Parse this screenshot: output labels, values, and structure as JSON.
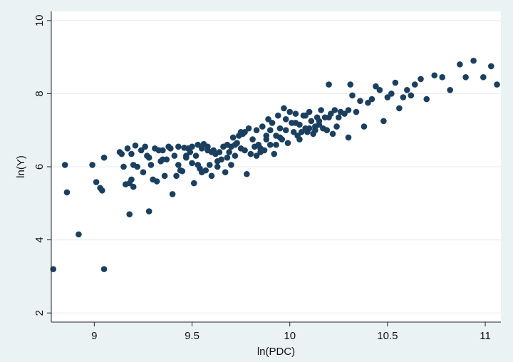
{
  "chart_data": {
    "type": "scatter",
    "xlabel": "ln(PDC)",
    "ylabel": "ln(Y)",
    "xlim": [
      8.78,
      11.08
    ],
    "ylim": [
      1.75,
      10.25
    ],
    "xticks": [
      9,
      9.5,
      10,
      10.5,
      11
    ],
    "yticks": [
      2,
      4,
      6,
      8,
      10
    ],
    "x_tick_labels": [
      "9",
      "9.5",
      "10",
      "10.5",
      "11"
    ],
    "y_tick_labels": [
      "2",
      "4",
      "6",
      "8",
      "10"
    ],
    "grid": true,
    "legend": "none",
    "colors": {
      "outer_background": "#eaf2f3",
      "plot_background": "#ffffff",
      "marker": "#1b3f5e",
      "grid": "#e9eef0",
      "axis": "#222222"
    },
    "series": [
      {
        "x": [
          8.79,
          8.85,
          8.86,
          8.92,
          8.99,
          9.01,
          9.03,
          9.04,
          9.05,
          9.05,
          9.13,
          9.14,
          9.15,
          9.16,
          9.17,
          9.18,
          9.18,
          9.19,
          9.19,
          9.2,
          9.2,
          9.21,
          9.22,
          9.24,
          9.25,
          9.26,
          9.27,
          9.28,
          9.29,
          9.3,
          9.31,
          9.32,
          9.33,
          9.34,
          9.35,
          9.36,
          9.37,
          9.38,
          9.39,
          9.4,
          9.41,
          9.42,
          9.43,
          9.44,
          9.45,
          9.46,
          9.47,
          9.48,
          9.49,
          9.5,
          9.51,
          9.52,
          9.53,
          9.54,
          9.55,
          9.56,
          9.57,
          9.58,
          9.59,
          9.6,
          9.61,
          9.62,
          9.63,
          9.64,
          9.65,
          9.66,
          9.67,
          9.68,
          9.69,
          9.7,
          9.71,
          9.72,
          9.73,
          9.74,
          9.75,
          9.76,
          9.77,
          9.78,
          9.79,
          9.8,
          9.81,
          9.82,
          9.83,
          9.84,
          9.85,
          9.86,
          9.87,
          9.88,
          9.89,
          9.9,
          9.91,
          9.92,
          9.93,
          9.94,
          9.95,
          9.96,
          9.97,
          9.98,
          9.99,
          10.0,
          10.01,
          10.02,
          10.03,
          10.04,
          10.05,
          10.06,
          10.07,
          10.08,
          10.09,
          10.1,
          10.11,
          10.12,
          10.13,
          10.14,
          10.15,
          10.16,
          10.17,
          10.18,
          10.19,
          10.2,
          10.21,
          10.22,
          10.23,
          10.24,
          10.25,
          10.26,
          10.28,
          10.3,
          10.31,
          10.32,
          10.34,
          10.36,
          10.38,
          10.4,
          10.42,
          10.44,
          10.46,
          10.48,
          10.5,
          10.52,
          10.54,
          10.56,
          10.58,
          10.6,
          10.62,
          10.64,
          10.67,
          10.7,
          10.74,
          10.78,
          10.82,
          10.87,
          10.9,
          10.94,
          10.99,
          11.03,
          11.06,
          9.43,
          9.47,
          9.53,
          9.58,
          9.63,
          9.68,
          9.72,
          9.77,
          9.83,
          9.88,
          9.93,
          9.98,
          10.03,
          10.08,
          10.13,
          9.35,
          9.55,
          9.75,
          9.95,
          10.15,
          9.28,
          9.6,
          9.85,
          10.05,
          10.2,
          9.5,
          9.7,
          9.9,
          10.1,
          10.3
        ],
        "y": [
          3.2,
          6.05,
          5.3,
          4.15,
          6.05,
          5.58,
          5.42,
          5.35,
          6.25,
          3.2,
          6.4,
          6.35,
          6.0,
          5.52,
          6.5,
          5.55,
          4.7,
          6.35,
          5.65,
          6.05,
          5.45,
          6.58,
          6.0,
          6.45,
          5.85,
          6.55,
          6.3,
          4.78,
          6.05,
          5.65,
          6.5,
          5.6,
          6.45,
          6.15,
          6.45,
          5.75,
          6.2,
          6.55,
          6.5,
          5.25,
          6.3,
          5.75,
          6.05,
          5.9,
          5.88,
          6.52,
          6.3,
          6.5,
          6.4,
          6.55,
          5.55,
          6.3,
          6.6,
          5.95,
          6.5,
          6.62,
          5.9,
          6.55,
          6.05,
          6.4,
          6.45,
          6.35,
          6.15,
          6.4,
          6.2,
          6.55,
          5.85,
          6.6,
          6.4,
          6.55,
          6.8,
          6.3,
          6.65,
          6.85,
          6.5,
          6.9,
          6.45,
          5.8,
          7.05,
          6.35,
          6.75,
          6.55,
          7.0,
          6.6,
          6.4,
          7.1,
          6.45,
          6.75,
          7.3,
          6.6,
          7.2,
          6.35,
          6.85,
          7.4,
          7.05,
          6.75,
          7.6,
          7.3,
          6.65,
          7.5,
          7.2,
          6.95,
          7.45,
          6.85,
          7.15,
          6.95,
          7.4,
          7.05,
          6.95,
          7.5,
          7.25,
          6.9,
          7.1,
          7.35,
          7.15,
          7.55,
          7.05,
          7.35,
          7.0,
          8.25,
          7.45,
          6.9,
          7.55,
          7.1,
          7.35,
          7.5,
          7.45,
          6.8,
          8.25,
          7.95,
          7.5,
          7.8,
          7.1,
          7.75,
          7.85,
          8.2,
          8.1,
          7.25,
          7.9,
          8.0,
          8.3,
          7.6,
          7.9,
          8.1,
          7.95,
          8.25,
          8.4,
          7.85,
          8.5,
          8.45,
          8.1,
          8.8,
          8.45,
          8.9,
          8.45,
          8.75,
          8.25,
          6.55,
          6.25,
          6.05,
          6.45,
          6.0,
          6.25,
          6.6,
          6.95,
          6.3,
          6.85,
          6.6,
          7.0,
          7.2,
          7.4,
          7.0,
          6.2,
          5.85,
          6.95,
          6.8,
          7.25,
          6.25,
          5.75,
          6.5,
          6.75,
          7.35,
          6.1,
          6.05,
          7.0,
          7.05,
          7.55
        ]
      }
    ]
  }
}
